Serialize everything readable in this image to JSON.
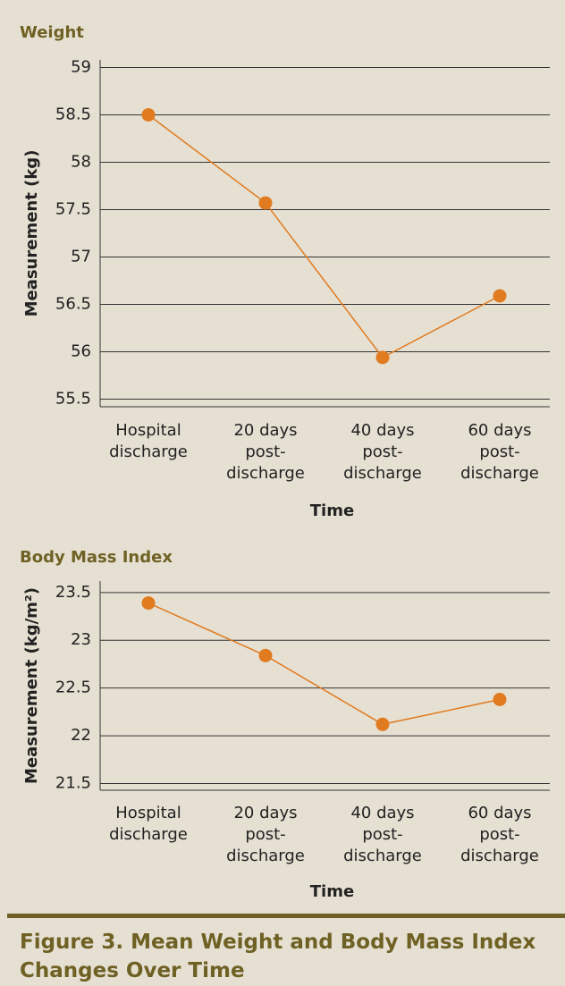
{
  "chart_data": [
    {
      "type": "line",
      "title": "Weight",
      "categories": [
        "Hospital discharge",
        "20 days post-discharge",
        "40 days post-discharge",
        "60 days post-discharge"
      ],
      "values": [
        58.5,
        57.57,
        55.94,
        56.59
      ],
      "color": "#e07b20",
      "xlabel": "Time",
      "ylabel": "Measurement (kg)",
      "ylim": [
        55.42,
        59.08
      ],
      "yticks": [
        55.5,
        56,
        56.5,
        57,
        57.5,
        58,
        58.5,
        59
      ],
      "grid": true
    },
    {
      "type": "line",
      "title": "Body Mass Index",
      "categories": [
        "Hospital discharge",
        "20 days post-discharge",
        "40 days post-discharge",
        "60 days post-discharge"
      ],
      "values": [
        23.39,
        22.84,
        22.12,
        22.38
      ],
      "color": "#e07b20",
      "xlabel": "Time",
      "ylabel": "Measurement (kg/m²)",
      "ylim": [
        21.43,
        23.62
      ],
      "yticks": [
        21.5,
        22,
        22.5,
        23,
        23.5
      ],
      "grid": true
    }
  ],
  "caption": "Figure 3. Mean Weight and Body Mass Index Changes Over Time"
}
